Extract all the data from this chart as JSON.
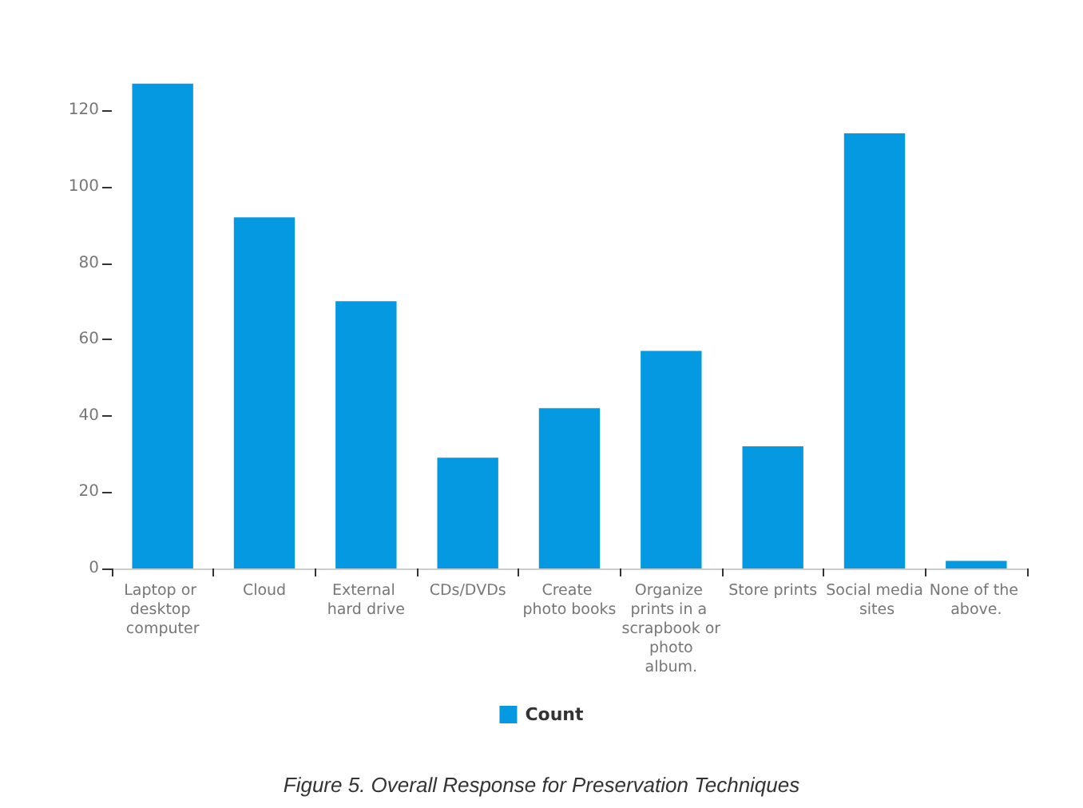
{
  "chart_data": {
    "type": "bar",
    "categories": [
      "Laptop or desktop computer",
      "Cloud",
      "External hard drive",
      "CDs/DVDs",
      "Create photo books",
      "Organize prints in a scrapbook or photo album.",
      "Store prints",
      "Social media sites",
      "None of the above."
    ],
    "series": [
      {
        "name": "Count",
        "color": "#0499e0",
        "values": [
          127,
          92,
          70,
          29,
          42,
          57,
          32,
          114,
          2
        ]
      }
    ],
    "ylim": [
      0,
      128
    ],
    "yticks": [
      0,
      20,
      40,
      60,
      80,
      100,
      120
    ],
    "grid": false,
    "legend": "bottom",
    "annotations": [
      "Figure 5. Overall Response for Preservation Techniques"
    ]
  }
}
